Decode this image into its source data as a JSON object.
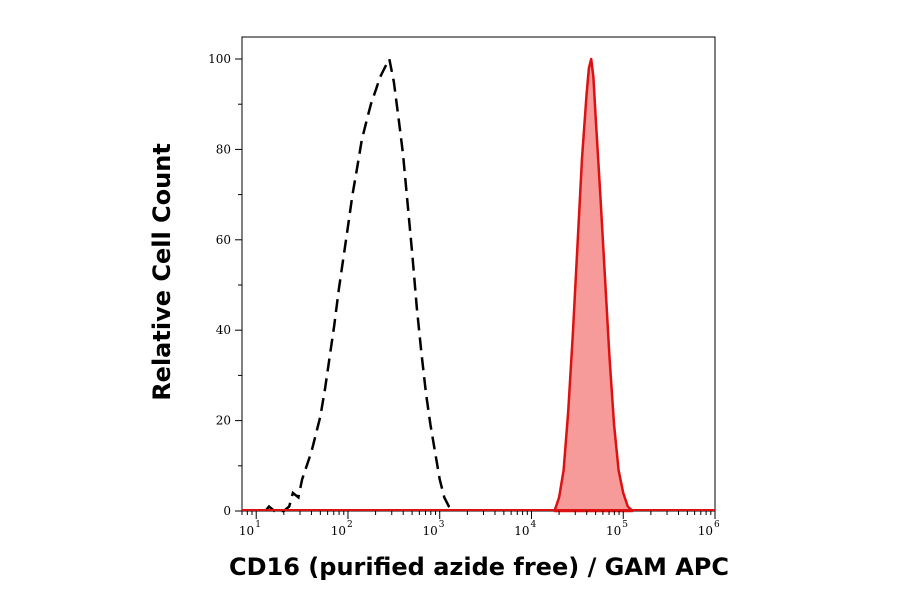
{
  "chart_data": {
    "type": "area",
    "xlabel": "CD16 (purified azide free) / GAM APC",
    "ylabel": "Relative Cell Count",
    "x_scale": "log",
    "xlim": [
      7,
      1000000
    ],
    "ylim": [
      0,
      100
    ],
    "x_ticks": [
      {
        "base": "10",
        "exp": "1",
        "value": 10
      },
      {
        "base": "10",
        "exp": "2",
        "value": 100
      },
      {
        "base": "10",
        "exp": "3",
        "value": 1000
      },
      {
        "base": "10",
        "exp": "4",
        "value": 10000
      },
      {
        "base": "10",
        "exp": "5",
        "value": 100000
      },
      {
        "base": "10",
        "exp": "6",
        "value": 1000000
      }
    ],
    "y_ticks": [
      {
        "label": "0",
        "value": 0
      },
      {
        "label": "20",
        "value": 20
      },
      {
        "label": "40",
        "value": 40
      },
      {
        "label": "60",
        "value": 60
      },
      {
        "label": "80",
        "value": 80
      },
      {
        "label": "100",
        "value": 100
      }
    ],
    "grid": false,
    "series": [
      {
        "style": "dashed-outline",
        "color": "#000000",
        "points": [
          [
            12.6,
            0
          ],
          [
            13.8,
            1
          ],
          [
            15.8,
            0
          ],
          [
            20,
            0
          ],
          [
            22.9,
            1
          ],
          [
            25.1,
            4
          ],
          [
            28.8,
            3
          ],
          [
            31.6,
            7
          ],
          [
            35.5,
            10
          ],
          [
            39.8,
            13
          ],
          [
            44.7,
            17
          ],
          [
            50.1,
            21
          ],
          [
            56.2,
            27
          ],
          [
            63.1,
            34
          ],
          [
            70.8,
            41
          ],
          [
            79.4,
            49
          ],
          [
            89.1,
            56
          ],
          [
            100,
            63
          ],
          [
            112,
            70
          ],
          [
            126,
            76
          ],
          [
            141,
            82
          ],
          [
            158,
            86
          ],
          [
            178,
            90
          ],
          [
            200,
            93
          ],
          [
            224,
            96
          ],
          [
            251,
            98
          ],
          [
            282,
            100
          ],
          [
            316,
            95
          ],
          [
            355,
            87
          ],
          [
            398,
            79
          ],
          [
            447,
            68
          ],
          [
            501,
            57
          ],
          [
            562,
            45
          ],
          [
            631,
            35
          ],
          [
            708,
            26
          ],
          [
            794,
            19
          ],
          [
            891,
            13
          ],
          [
            1000,
            7
          ],
          [
            1122,
            3
          ],
          [
            1259,
            1
          ],
          [
            1413,
            0
          ]
        ]
      },
      {
        "style": "filled",
        "color": "#dd1111",
        "fill": "#f79a9a",
        "points": [
          [
            17800,
            0
          ],
          [
            20000,
            3
          ],
          [
            22400,
            9
          ],
          [
            25100,
            22
          ],
          [
            28200,
            39
          ],
          [
            31600,
            58
          ],
          [
            35500,
            78
          ],
          [
            39800,
            92
          ],
          [
            42200,
            98
          ],
          [
            44700,
            100
          ],
          [
            47300,
            96
          ],
          [
            50100,
            87
          ],
          [
            56200,
            70
          ],
          [
            63100,
            52
          ],
          [
            70800,
            34
          ],
          [
            79400,
            19
          ],
          [
            89100,
            9
          ],
          [
            100000,
            4
          ],
          [
            112000,
            1
          ],
          [
            126000,
            0
          ]
        ]
      }
    ]
  }
}
